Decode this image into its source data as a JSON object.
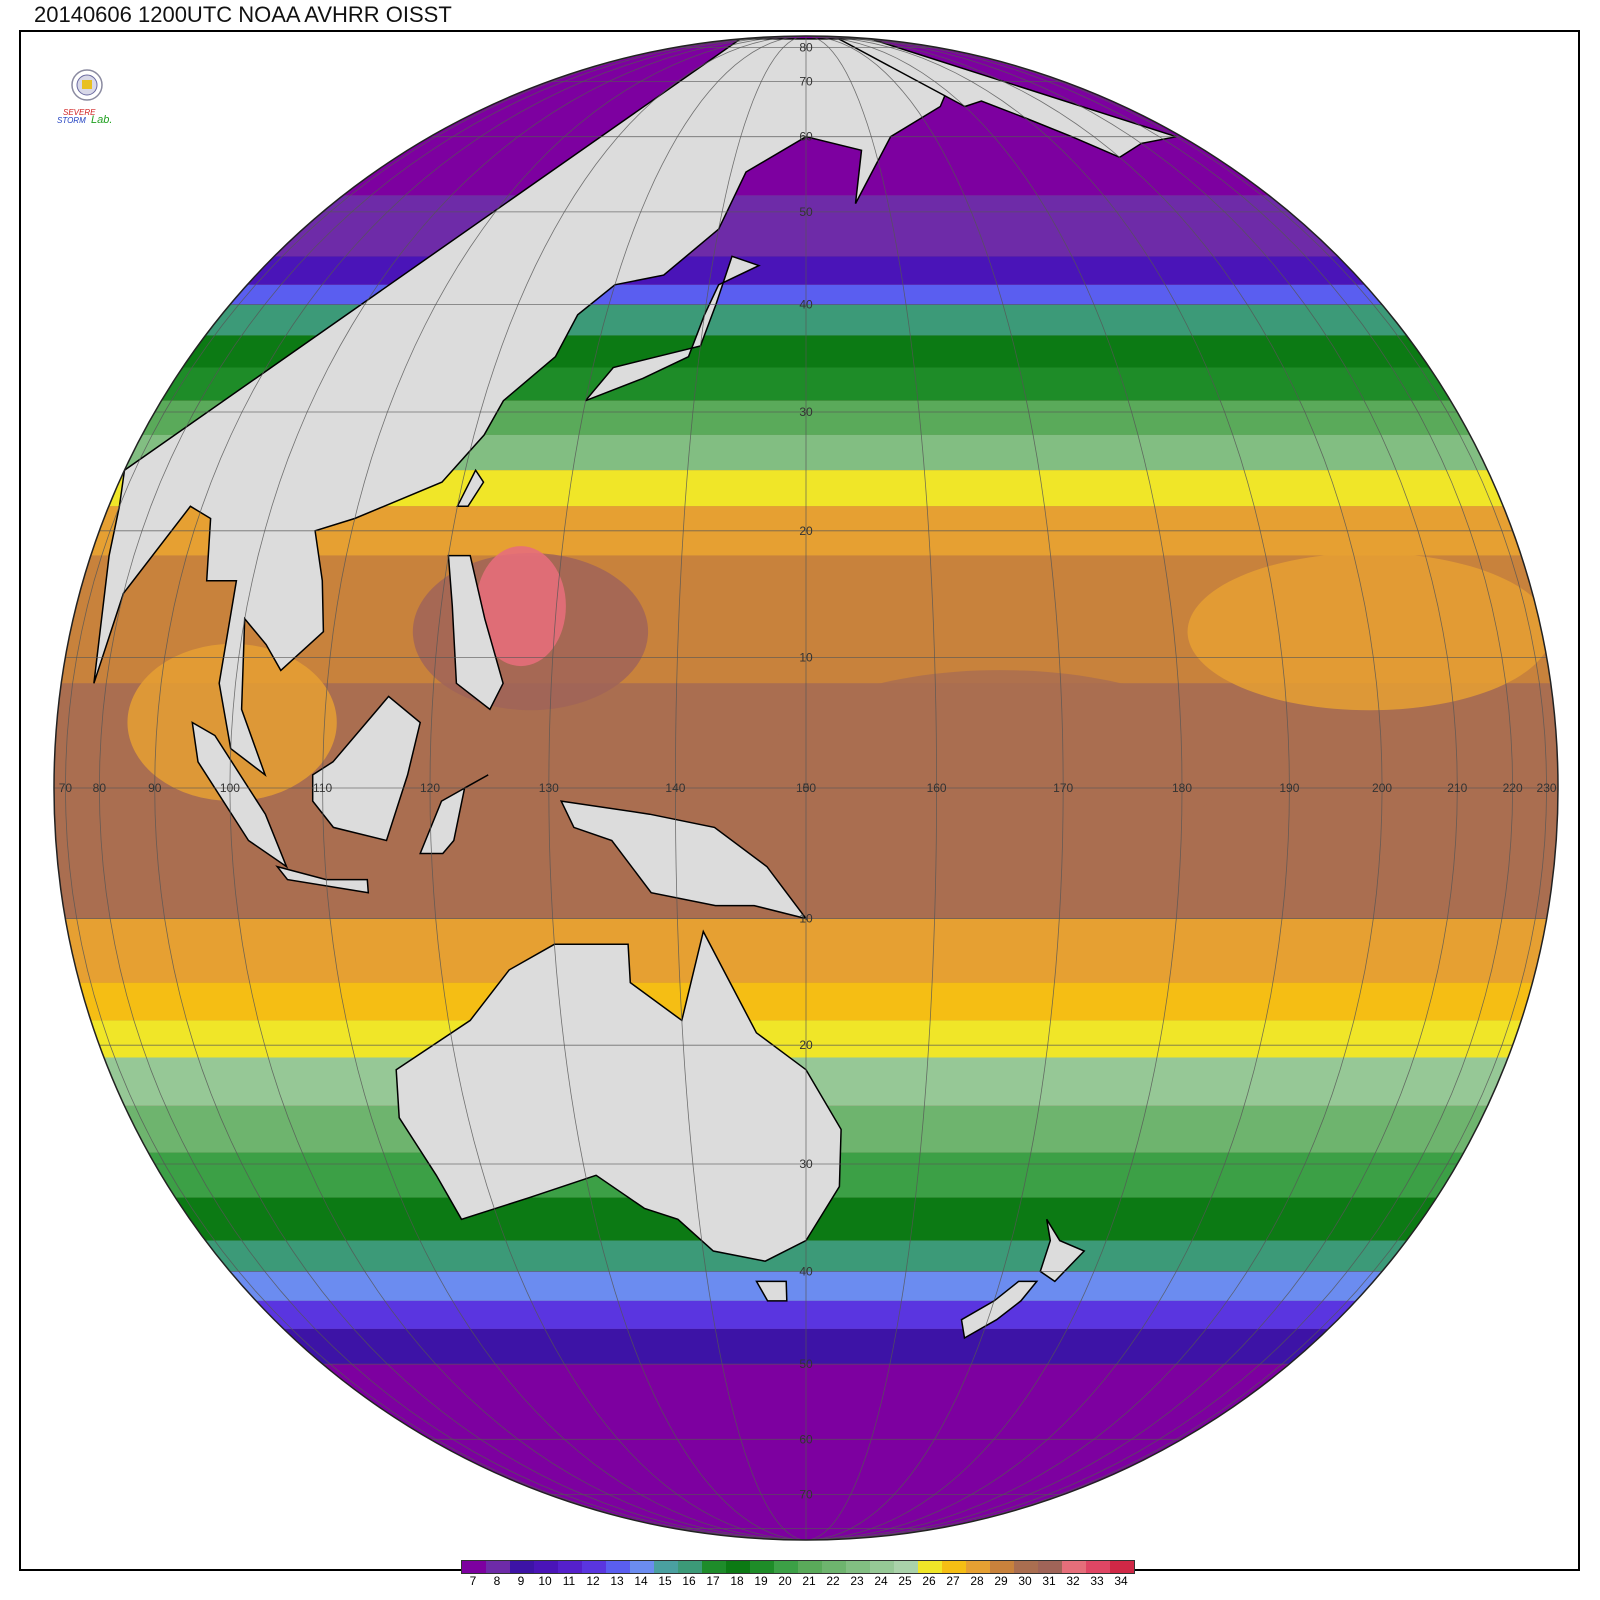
{
  "title": "20140606 1200UTC NOAA AVHRR OISST",
  "logo": {
    "text_top": "SEVERE",
    "text_bottom": "STORM",
    "text_lab": "Lab."
  },
  "map": {
    "projection": "orthographic",
    "center_lon": 150,
    "center_lat": 0,
    "land_color": "#dcdcdc",
    "coast_color": "#000000",
    "grid_color": "#555555",
    "lon_labels": [
      "70",
      "80",
      "90",
      "100",
      "110",
      "120",
      "130",
      "140",
      "150",
      "160",
      "170",
      "180",
      "190",
      "200",
      "210",
      "220",
      "230"
    ],
    "lat_labels": [
      "80",
      "70",
      "60",
      "50",
      "40",
      "30",
      "20",
      "10",
      "0",
      "10",
      "20",
      "30",
      "40",
      "50",
      "60",
      "70"
    ]
  },
  "colorbar": {
    "labels": [
      "7",
      "8",
      "9",
      "10",
      "11",
      "12",
      "13",
      "14",
      "15",
      "16",
      "17",
      "18",
      "19",
      "20",
      "21",
      "22",
      "23",
      "24",
      "25",
      "26",
      "27",
      "28",
      "29",
      "30",
      "31",
      "32",
      "33",
      "34"
    ],
    "colors": [
      "#7d00a0",
      "#6e2ba8",
      "#3d13a6",
      "#4a14b8",
      "#5520cc",
      "#5a35e0",
      "#5a5ef0",
      "#6b8cf0",
      "#4aa0a0",
      "#3c9a78",
      "#1e8c2a",
      "#0c7a14",
      "#1e8c28",
      "#3ca046",
      "#5aaa5a",
      "#6eb46e",
      "#82be82",
      "#96c896",
      "#aad2aa",
      "#f0e628",
      "#f5be14",
      "#e6a032",
      "#c8823c",
      "#aa6e50",
      "#a06458",
      "#e66e7a",
      "#e04664",
      "#d02846"
    ]
  }
}
